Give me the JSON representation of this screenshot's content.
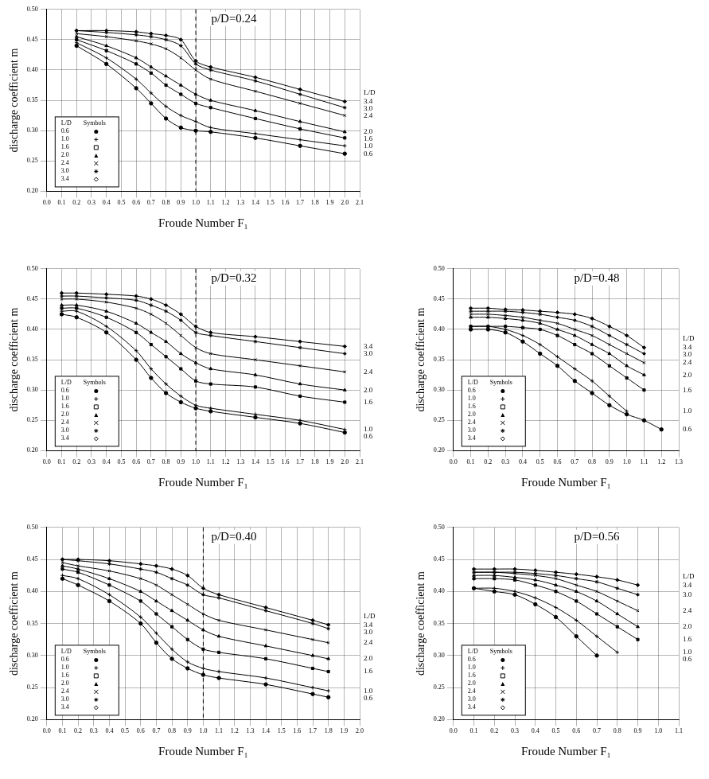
{
  "chart_data": [
    {
      "type": "line",
      "title": "p/D=0.24",
      "x_label": "Froude Number F₁",
      "y_label": "discharge coefficient m",
      "x": [
        0.2,
        0.4,
        0.6,
        0.7,
        0.8,
        0.9,
        1.0,
        1.1,
        1.4,
        1.7,
        2.0
      ],
      "series": [
        {
          "name": "0.6",
          "color": "#000000",
          "marker": "circle",
          "values": [
            0.44,
            0.41,
            0.37,
            0.345,
            0.32,
            0.305,
            0.3,
            0.298,
            0.288,
            0.275,
            0.262
          ]
        },
        {
          "name": "1.0",
          "color": "#000000",
          "marker": "cross",
          "values": [
            0.445,
            0.42,
            0.385,
            0.362,
            0.34,
            0.325,
            0.315,
            0.305,
            0.295,
            0.285,
            0.275
          ]
        },
        {
          "name": "1.6",
          "color": "#000000",
          "marker": "rect",
          "values": [
            0.45,
            0.432,
            0.41,
            0.395,
            0.375,
            0.36,
            0.345,
            0.338,
            0.32,
            0.303,
            0.288
          ]
        },
        {
          "name": "2.0",
          "color": "#000000",
          "marker": "triangle",
          "values": [
            0.455,
            0.44,
            0.42,
            0.405,
            0.39,
            0.375,
            0.36,
            0.35,
            0.333,
            0.315,
            0.298
          ]
        },
        {
          "name": "2.4",
          "color": "#000000",
          "marker": "crossRot",
          "values": [
            0.46,
            0.455,
            0.448,
            0.443,
            0.435,
            0.42,
            0.4,
            0.385,
            0.365,
            0.345,
            0.325
          ]
        },
        {
          "name": "3.0",
          "color": "#000000",
          "marker": "star",
          "values": [
            0.465,
            0.462,
            0.458,
            0.455,
            0.45,
            0.44,
            0.41,
            0.4,
            0.382,
            0.36,
            0.338
          ]
        },
        {
          "name": "3.4",
          "color": "#000000",
          "marker": "rectRot",
          "values": [
            0.465,
            0.465,
            0.463,
            0.46,
            0.457,
            0.45,
            0.415,
            0.405,
            0.388,
            0.368,
            0.348
          ]
        }
      ],
      "xlim": [
        0,
        2.1
      ],
      "xticks": [
        {
          "value": 0,
          "label": "0.0"
        },
        0.1,
        0.2,
        0.3,
        0.4,
        0.5,
        0.6,
        0.7,
        0.8,
        0.9,
        {
          "value": 1,
          "label": "1.0"
        },
        1.1,
        1.2,
        1.3,
        1.4,
        1.5,
        1.6,
        1.7,
        1.8,
        1.9,
        {
          "value": 2,
          "label": "2.0"
        },
        2.1
      ],
      "ylim": [
        0.2,
        0.5
      ],
      "yticks": [
        {
          "value": 0.2,
          "label": "0.20"
        },
        0.25,
        {
          "value": 0.3,
          "label": "0.30"
        },
        0.35,
        {
          "value": 0.4,
          "label": "0.40"
        },
        0.45,
        {
          "value": 0.5,
          "label": "0.50"
        }
      ],
      "grid": true,
      "legend": "lower left",
      "legend_header": [
        "L/D",
        "Symbols"
      ],
      "end_label_header": "L/D",
      "dashed_line_x": 1.0
    },
    {
      "type": "line",
      "title": "p/D=0.32",
      "x_label": "Froude Number F₁",
      "y_label": "discharge coefficient m",
      "x": [
        0.1,
        0.2,
        0.4,
        0.6,
        0.7,
        0.8,
        0.9,
        1.0,
        1.1,
        1.4,
        1.7,
        2.0
      ],
      "series": [
        {
          "name": "0.6",
          "color": "#000000",
          "marker": "circle",
          "values": [
            0.425,
            0.42,
            0.395,
            0.35,
            0.32,
            0.295,
            0.28,
            0.27,
            0.265,
            0.255,
            0.245,
            0.23
          ]
        },
        {
          "name": "1.0",
          "color": "#000000",
          "marker": "cross",
          "values": [
            0.43,
            0.43,
            0.405,
            0.365,
            0.335,
            0.31,
            0.29,
            0.275,
            0.27,
            0.26,
            0.25,
            0.235
          ]
        },
        {
          "name": "1.6",
          "color": "#000000",
          "marker": "rect",
          "values": [
            0.435,
            0.435,
            0.42,
            0.395,
            0.375,
            0.355,
            0.335,
            0.315,
            0.31,
            0.305,
            0.29,
            0.28
          ]
        },
        {
          "name": "2.0",
          "color": "#000000",
          "marker": "triangle",
          "values": [
            0.44,
            0.44,
            0.43,
            0.41,
            0.395,
            0.38,
            0.36,
            0.345,
            0.335,
            0.325,
            0.31,
            0.3
          ]
        },
        {
          "name": "2.4",
          "color": "#000000",
          "marker": "crossRot",
          "values": [
            0.45,
            0.45,
            0.445,
            0.435,
            0.425,
            0.41,
            0.39,
            0.37,
            0.36,
            0.35,
            0.34,
            0.33
          ]
        },
        {
          "name": "3.0",
          "color": "#000000",
          "marker": "star",
          "values": [
            0.455,
            0.455,
            0.452,
            0.448,
            0.44,
            0.43,
            0.415,
            0.395,
            0.39,
            0.38,
            0.37,
            0.36
          ]
        },
        {
          "name": "3.4",
          "color": "#000000",
          "marker": "rectRot",
          "values": [
            0.46,
            0.46,
            0.458,
            0.455,
            0.45,
            0.44,
            0.425,
            0.405,
            0.395,
            0.388,
            0.38,
            0.372
          ]
        }
      ],
      "xlim": [
        0,
        2.1
      ],
      "xticks": [
        {
          "value": 0,
          "label": "0.0"
        },
        0.1,
        0.2,
        0.3,
        0.4,
        0.5,
        0.6,
        0.7,
        0.8,
        0.9,
        {
          "value": 1,
          "label": "1.0"
        },
        1.1,
        1.2,
        1.3,
        1.4,
        1.5,
        1.6,
        1.7,
        1.8,
        1.9,
        {
          "value": 2,
          "label": "2.0"
        },
        2.1
      ],
      "ylim": [
        0.2,
        0.5
      ],
      "yticks": [
        {
          "value": 0.2,
          "label": "0.20"
        },
        0.25,
        {
          "value": 0.3,
          "label": "0.30"
        },
        0.35,
        {
          "value": 0.4,
          "label": "0.40"
        },
        0.45,
        {
          "value": 0.5,
          "label": "0.50"
        }
      ],
      "grid": true,
      "legend": "lower left",
      "legend_header": [
        "L/D",
        "Symbols"
      ],
      "dashed_line_x": 1.0
    },
    {
      "type": "line",
      "title": "p/D=0.48",
      "x_label": "Froude Number F₁",
      "y_label": "discharge coefficient m",
      "x": [
        0.1,
        0.2,
        0.3,
        0.4,
        0.5,
        0.6,
        0.7,
        0.8,
        0.9,
        1.0,
        1.1,
        1.2
      ],
      "series": [
        {
          "name": "0.6",
          "color": "#000000",
          "marker": "circle",
          "values": [
            0.4,
            0.4,
            0.395,
            0.38,
            0.36,
            0.34,
            0.315,
            0.295,
            0.275,
            0.26,
            0.25,
            0.235
          ]
        },
        {
          "name": "1.0",
          "color": "#000000",
          "marker": "cross",
          "values": [
            0.405,
            0.405,
            0.4,
            0.39,
            0.375,
            0.355,
            0.335,
            0.315,
            0.29,
            0.265,
            null,
            null
          ]
        },
        {
          "name": "1.6",
          "color": "#000000",
          "marker": "rect",
          "values": [
            0.405,
            0.405,
            0.405,
            0.403,
            0.4,
            0.39,
            0.375,
            0.36,
            0.34,
            0.32,
            0.3,
            null
          ]
        },
        {
          "name": "2.0",
          "color": "#000000",
          "marker": "triangle",
          "values": [
            0.42,
            0.42,
            0.418,
            0.415,
            0.41,
            0.4,
            0.39,
            0.375,
            0.36,
            0.34,
            0.325,
            null
          ]
        },
        {
          "name": "2.4",
          "color": "#000000",
          "marker": "crossRot",
          "values": [
            0.425,
            0.425,
            0.423,
            0.42,
            0.415,
            0.41,
            0.4,
            0.39,
            0.375,
            0.36,
            0.345,
            null
          ]
        },
        {
          "name": "3.0",
          "color": "#000000",
          "marker": "star",
          "values": [
            0.43,
            0.43,
            0.43,
            0.428,
            0.425,
            0.42,
            0.415,
            0.405,
            0.39,
            0.375,
            0.36,
            null
          ]
        },
        {
          "name": "3.4",
          "color": "#000000",
          "marker": "rectRot",
          "values": [
            0.435,
            0.435,
            0.433,
            0.432,
            0.43,
            0.428,
            0.425,
            0.418,
            0.405,
            0.39,
            0.37,
            null
          ]
        }
      ],
      "xlim": [
        0,
        1.3
      ],
      "xticks": [
        {
          "value": 0,
          "label": "0.0"
        },
        0.1,
        0.2,
        0.3,
        0.4,
        0.5,
        0.6,
        0.7,
        0.8,
        0.9,
        {
          "value": 1,
          "label": "1.0"
        },
        1.1,
        1.2,
        1.3
      ],
      "ylim": [
        0.2,
        0.5
      ],
      "yticks": [
        {
          "value": 0.2,
          "label": "0.20"
        },
        0.25,
        {
          "value": 0.3,
          "label": "0.30"
        },
        0.35,
        {
          "value": 0.4,
          "label": "0.40"
        },
        0.45,
        {
          "value": 0.5,
          "label": "0.50"
        }
      ],
      "grid": true,
      "legend": "lower left",
      "legend_header": [
        "L/D",
        "Symbols"
      ],
      "end_label_header": "L/D"
    },
    {
      "type": "line",
      "title": "p/D=0.40",
      "x_label": "Froude Number F₁",
      "y_label": "discharge coefficient m",
      "x": [
        0.1,
        0.2,
        0.4,
        0.6,
        0.7,
        0.8,
        0.9,
        1.0,
        1.1,
        1.4,
        1.7,
        1.8
      ],
      "series": [
        {
          "name": "0.6",
          "color": "#000000",
          "marker": "circle",
          "values": [
            0.42,
            0.41,
            0.385,
            0.35,
            0.32,
            0.295,
            0.28,
            0.27,
            0.265,
            0.255,
            0.24,
            0.235
          ]
        },
        {
          "name": "1.0",
          "color": "#000000",
          "marker": "cross",
          "values": [
            0.425,
            0.42,
            0.395,
            0.36,
            0.335,
            0.31,
            0.29,
            0.28,
            0.275,
            0.265,
            0.25,
            0.245
          ]
        },
        {
          "name": "1.6",
          "color": "#000000",
          "marker": "rect",
          "values": [
            0.435,
            0.43,
            0.41,
            0.385,
            0.365,
            0.345,
            0.325,
            0.31,
            0.305,
            0.295,
            0.28,
            0.275
          ]
        },
        {
          "name": "2.0",
          "color": "#000000",
          "marker": "triangle",
          "values": [
            0.44,
            0.435,
            0.42,
            0.4,
            0.385,
            0.37,
            0.355,
            0.34,
            0.33,
            0.315,
            0.3,
            0.295
          ]
        },
        {
          "name": "2.4",
          "color": "#000000",
          "marker": "crossRot",
          "values": [
            0.445,
            0.44,
            0.432,
            0.42,
            0.41,
            0.395,
            0.38,
            0.365,
            0.355,
            0.34,
            0.325,
            0.32
          ]
        },
        {
          "name": "3.0",
          "color": "#000000",
          "marker": "star",
          "values": [
            0.45,
            0.448,
            0.443,
            0.435,
            0.43,
            0.42,
            0.41,
            0.395,
            0.39,
            0.37,
            0.35,
            0.342
          ]
        },
        {
          "name": "3.4",
          "color": "#000000",
          "marker": "rectRot",
          "values": [
            0.45,
            0.45,
            0.448,
            0.443,
            0.44,
            0.435,
            0.425,
            0.405,
            0.395,
            0.375,
            0.355,
            0.348
          ]
        }
      ],
      "xlim": [
        0,
        2.0
      ],
      "xticks": [
        {
          "value": 0,
          "label": "0.0"
        },
        0.1,
        0.2,
        0.3,
        0.4,
        0.5,
        0.6,
        0.7,
        0.8,
        0.9,
        {
          "value": 1,
          "label": "1.0"
        },
        1.1,
        1.2,
        1.3,
        1.4,
        1.5,
        1.6,
        1.7,
        1.8,
        1.9,
        {
          "value": 2,
          "label": "2.0"
        }
      ],
      "ylim": [
        0.2,
        0.5
      ],
      "yticks": [
        {
          "value": 0.2,
          "label": "0.20"
        },
        0.25,
        {
          "value": 0.3,
          "label": "0.30"
        },
        0.35,
        {
          "value": 0.4,
          "label": "0.40"
        },
        0.45,
        {
          "value": 0.5,
          "label": "0.50"
        }
      ],
      "grid": true,
      "legend": "lower left",
      "legend_header": [
        "L/D",
        "Symbols"
      ],
      "end_label_header": "L/D",
      "dashed_line_x": 1.0
    },
    {
      "type": "line",
      "title": "p/D=0.56",
      "x_label": "Froude Number F₁",
      "y_label": "discharge coefficient m",
      "x": [
        0.1,
        0.2,
        0.3,
        0.4,
        0.5,
        0.6,
        0.7,
        0.8,
        0.9
      ],
      "series": [
        {
          "name": "0.6",
          "color": "#000000",
          "marker": "circle",
          "values": [
            0.405,
            0.4,
            0.395,
            0.38,
            0.36,
            0.33,
            0.3,
            null,
            null
          ]
        },
        {
          "name": "1.0",
          "color": "#000000",
          "marker": "cross",
          "values": [
            0.405,
            0.405,
            0.4,
            0.39,
            0.375,
            0.355,
            0.33,
            0.305,
            null
          ]
        },
        {
          "name": "1.6",
          "color": "#000000",
          "marker": "rect",
          "values": [
            0.42,
            0.42,
            0.418,
            0.41,
            0.4,
            0.385,
            0.365,
            0.345,
            0.325
          ]
        },
        {
          "name": "2.0",
          "color": "#000000",
          "marker": "triangle",
          "values": [
            0.425,
            0.425,
            0.422,
            0.418,
            0.41,
            0.4,
            0.385,
            0.365,
            0.345
          ]
        },
        {
          "name": "2.4",
          "color": "#000000",
          "marker": "crossRot",
          "values": [
            0.43,
            0.43,
            0.428,
            0.425,
            0.42,
            0.41,
            0.4,
            0.385,
            0.37
          ]
        },
        {
          "name": "3.0",
          "color": "#000000",
          "marker": "star",
          "values": [
            0.43,
            0.43,
            0.43,
            0.428,
            0.425,
            0.42,
            0.415,
            0.405,
            0.395
          ]
        },
        {
          "name": "3.4",
          "color": "#000000",
          "marker": "rectRot",
          "values": [
            0.435,
            0.435,
            0.435,
            0.433,
            0.43,
            0.427,
            0.423,
            0.418,
            0.41
          ]
        }
      ],
      "xlim": [
        0,
        1.1
      ],
      "xticks": [
        {
          "value": 0,
          "label": "0.0"
        },
        0.1,
        0.2,
        0.3,
        0.4,
        0.5,
        0.6,
        0.7,
        0.8,
        0.9,
        {
          "value": 1,
          "label": "1.0"
        },
        1.1
      ],
      "ylim": [
        0.2,
        0.5
      ],
      "yticks": [
        {
          "value": 0.2,
          "label": "0.20"
        },
        0.25,
        {
          "value": 0.3,
          "label": "0.30"
        },
        0.35,
        {
          "value": 0.4,
          "label": "0.40"
        },
        0.45,
        {
          "value": 0.5,
          "label": "0.50"
        }
      ],
      "grid": true,
      "legend": "lower left",
      "legend_header": [
        "L/D",
        "Symbols"
      ],
      "end_label_header": "L/D"
    }
  ]
}
